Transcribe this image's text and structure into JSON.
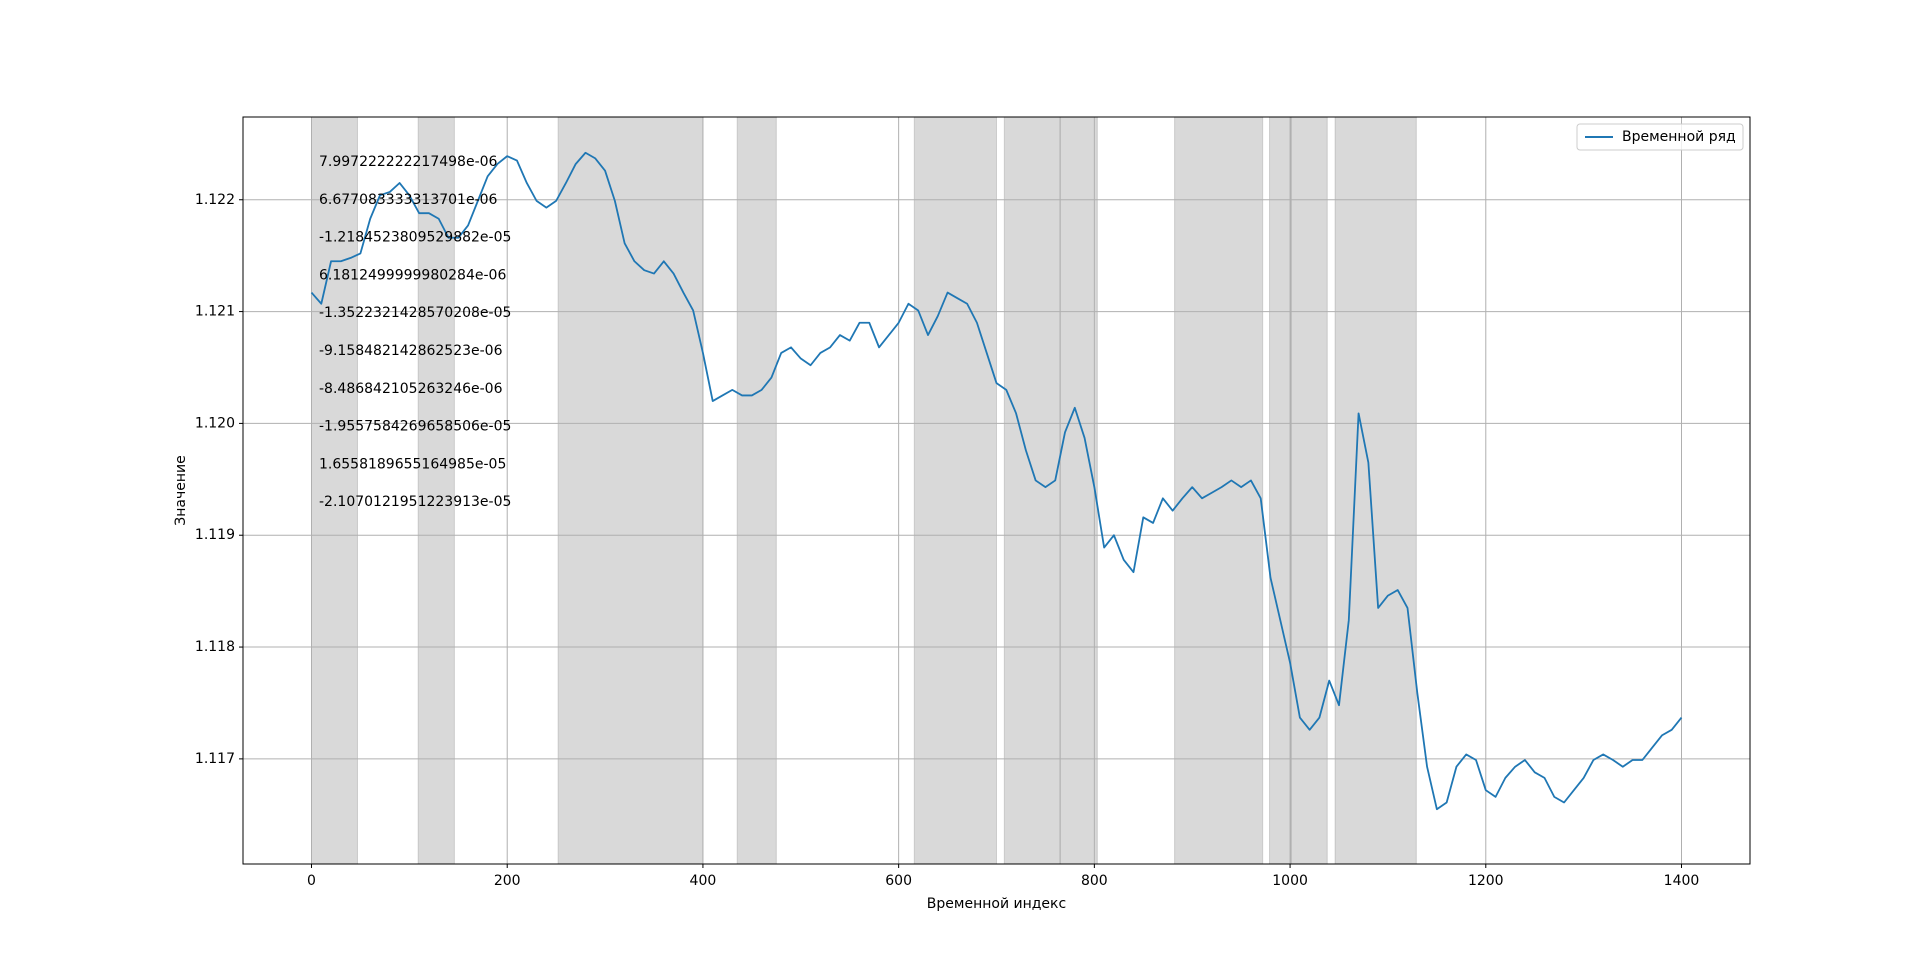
{
  "chart_data": {
    "type": "line",
    "xlabel": "Временной индекс",
    "ylabel": "Значение",
    "x": [
      0,
      10,
      20,
      30,
      40,
      50,
      60,
      70,
      80,
      90,
      100,
      110,
      120,
      130,
      140,
      150,
      160,
      170,
      180,
      190,
      200,
      210,
      220,
      230,
      240,
      250,
      260,
      270,
      280,
      290,
      300,
      310,
      320,
      330,
      340,
      350,
      360,
      370,
      380,
      390,
      400,
      410,
      420,
      430,
      440,
      450,
      460,
      470,
      480,
      490,
      500,
      510,
      520,
      530,
      540,
      550,
      560,
      570,
      580,
      590,
      600,
      610,
      620,
      630,
      640,
      650,
      660,
      670,
      680,
      690,
      700,
      710,
      720,
      730,
      740,
      750,
      760,
      770,
      780,
      790,
      800,
      810,
      820,
      830,
      840,
      850,
      860,
      870,
      880,
      890,
      900,
      910,
      920,
      930,
      940,
      950,
      960,
      970,
      980,
      990,
      1000,
      1010,
      1020,
      1030,
      1040,
      1050,
      1060,
      1070,
      1080,
      1090,
      1100,
      1110,
      1120,
      1130,
      1140,
      1150,
      1160,
      1170,
      1180,
      1190,
      1200,
      1210,
      1220,
      1230,
      1240,
      1250,
      1260,
      1270,
      1280,
      1290,
      1300,
      1310,
      1320,
      1330,
      1340,
      1350,
      1360,
      1370,
      1380,
      1390,
      1400
    ],
    "series": [
      {
        "name": "Временной ряд",
        "color": "#1f77b4",
        "values": [
          1.12117,
          1.12107,
          1.12145,
          1.12145,
          1.12148,
          1.12152,
          1.12183,
          1.12204,
          1.12207,
          1.12215,
          1.12204,
          1.12188,
          1.12188,
          1.12183,
          1.12166,
          1.12166,
          1.12177,
          1.12199,
          1.12221,
          1.12232,
          1.12239,
          1.12235,
          1.12215,
          1.12199,
          1.12193,
          1.12199,
          1.12215,
          1.12232,
          1.12242,
          1.12237,
          1.12226,
          1.12199,
          1.12161,
          1.12145,
          1.12137,
          1.12134,
          1.12145,
          1.12134,
          1.12117,
          1.12101,
          1.12063,
          1.1202,
          1.12025,
          1.1203,
          1.12025,
          1.12025,
          1.1203,
          1.12041,
          1.12063,
          1.12068,
          1.12058,
          1.12052,
          1.12063,
          1.12068,
          1.12079,
          1.12074,
          1.1209,
          1.1209,
          1.12068,
          1.12079,
          1.1209,
          1.12107,
          1.12101,
          1.12079,
          1.12096,
          1.12117,
          1.12112,
          1.12107,
          1.1209,
          1.12063,
          1.12036,
          1.1203,
          1.12009,
          1.11976,
          1.11949,
          1.11943,
          1.11949,
          1.11992,
          1.12014,
          1.11987,
          1.11943,
          1.11889,
          1.119,
          1.11878,
          1.11867,
          1.11916,
          1.11911,
          1.11933,
          1.11922,
          1.11933,
          1.11943,
          1.11933,
          1.11938,
          1.11943,
          1.11949,
          1.11943,
          1.11949,
          1.11933,
          1.11862,
          1.11824,
          1.11786,
          1.11737,
          1.11726,
          1.11737,
          1.1177,
          1.11748,
          1.11824,
          1.12009,
          1.11965,
          1.11835,
          1.11846,
          1.11851,
          1.11835,
          1.11759,
          1.11693,
          1.11655,
          1.11661,
          1.11693,
          1.11704,
          1.11699,
          1.11672,
          1.11666,
          1.11683,
          1.11693,
          1.11699,
          1.11688,
          1.11683,
          1.11666,
          1.11661,
          1.11672,
          1.11683,
          1.11699,
          1.11704,
          1.11699,
          1.11693,
          1.11699,
          1.11699,
          1.1171,
          1.11721,
          1.11726,
          1.11737
        ]
      }
    ],
    "spans": [
      [
        0,
        47
      ],
      [
        109,
        146
      ],
      [
        252,
        400
      ],
      [
        435,
        475
      ],
      [
        616,
        700
      ],
      [
        708,
        765
      ],
      [
        765,
        803
      ],
      [
        882,
        972
      ],
      [
        979,
        1001
      ],
      [
        1001,
        1038
      ],
      [
        1046,
        1129
      ]
    ],
    "span_color": "#808080",
    "annotations": [
      "7.997222222217498e-06",
      "6.677083333313701e-06",
      "-1.2184523809529882e-05",
      "6.1812499999980284e-06",
      "-1.3522321428570208e-05",
      "-9.158482142862523e-06",
      "-8.486842105263246e-06",
      "-1.9557584269658506e-05",
      "1.6558189655164985e-05",
      "-2.1070121951223913e-05"
    ],
    "xlim": [
      -70,
      1470
    ],
    "xticks": [
      0,
      200,
      400,
      600,
      800,
      1000,
      1200,
      1400
    ],
    "ylim": [
      1.11606,
      1.12274
    ],
    "yticks": [
      1.117,
      1.118,
      1.119,
      {
        "value": 1.12,
        "label": "1.120"
      },
      1.121,
      1.122
    ],
    "grid": true,
    "legend": "upper right"
  }
}
